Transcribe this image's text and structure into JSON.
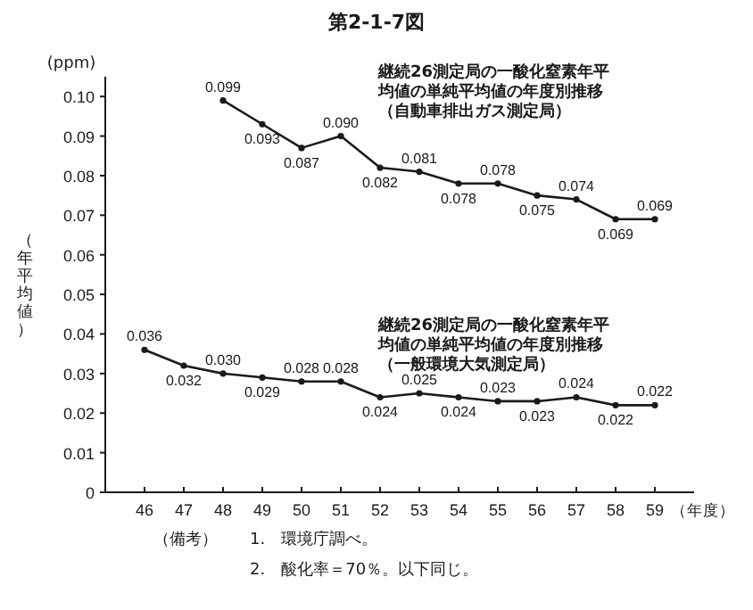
{
  "chart_data": {
    "type": "line",
    "title": "第2-1-7図",
    "xlabel": "（年度）",
    "ylabel": "（年平均値）",
    "xlim": [
      45,
      60
    ],
    "xticks": [
      46,
      47,
      48,
      49,
      50,
      51,
      52,
      53,
      54,
      55,
      56,
      57,
      58,
      59
    ],
    "ylim": [
      0,
      0.105
    ],
    "yticks": [
      0,
      0.01,
      0.02,
      0.03,
      0.04,
      0.05,
      0.06,
      0.07,
      0.08,
      0.09,
      {
        "value": 0.1,
        "label": "0.10"
      }
    ],
    "grid": false,
    "marker": "circle",
    "line_style": "solid",
    "series": [
      {
        "name": "継続26測定局の一酸化窒素年平均値の単純平均値の年度別推移（自動車排出ガス測定局）",
        "color": "#1a1a1a",
        "x": [
          48,
          49,
          50,
          51,
          52,
          53,
          54,
          55,
          56,
          57,
          58,
          59
        ],
        "values": [
          0.099,
          0.093,
          0.087,
          0.09,
          0.082,
          0.081,
          0.078,
          0.078,
          0.075,
          0.074,
          0.069,
          0.069
        ],
        "value_labels": [
          "0.099",
          "0.093",
          "0.087",
          "0.090",
          "0.082",
          "0.081",
          "0.078",
          "0.078",
          "0.075",
          "0.074",
          "0.069",
          "0.069"
        ]
      },
      {
        "name": "継続26測定局の一酸化窒素年平均値の単純平均値の年度別推移（一般環境大気測定局）",
        "color": "#1a1a1a",
        "x": [
          46,
          47,
          48,
          49,
          50,
          51,
          52,
          53,
          54,
          55,
          56,
          57,
          58,
          59
        ],
        "values": [
          0.036,
          0.032,
          0.03,
          0.029,
          0.028,
          0.028,
          0.024,
          0.025,
          0.024,
          0.023,
          0.023,
          0.024,
          0.022,
          0.022
        ],
        "value_labels": [
          "0.036",
          "0.032",
          "0.030",
          "0.029",
          "0.028",
          "0.028",
          "0.024",
          "0.025",
          "0.024",
          "0.023",
          "0.023",
          "0.024",
          "0.022",
          "0.022"
        ]
      }
    ],
    "annotations": [
      "(ppm)",
      "（備考）",
      "1.　環境庁調べ。",
      "2.　酸化率＝70％。以下同じ。"
    ]
  }
}
